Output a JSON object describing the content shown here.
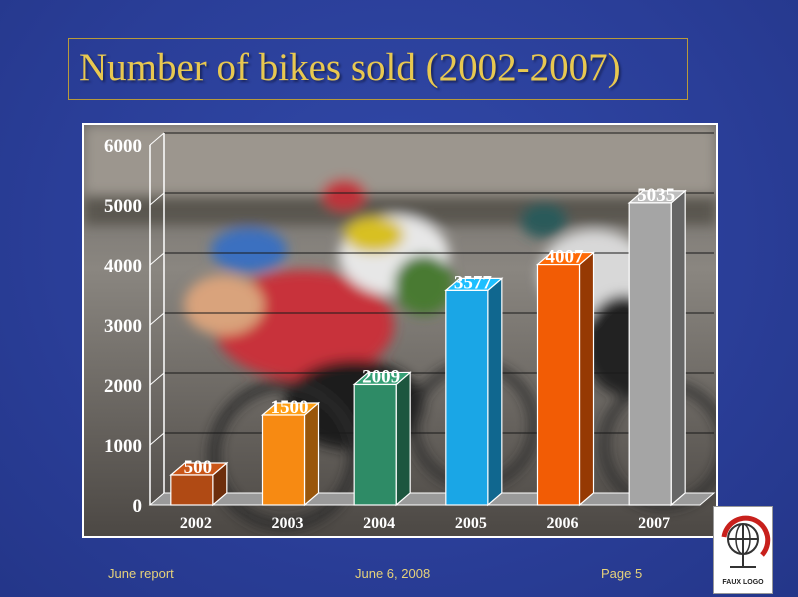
{
  "slide": {
    "title": "Number of bikes sold (2002-2007)",
    "footer_left": "June report",
    "footer_center": "June 6, 2008",
    "footer_right": "Page 5",
    "logo_text": "FAUX LOGO"
  },
  "colors": {
    "background": "#2a3f9a",
    "title": "#e8c850",
    "footer": "#e6d27a"
  },
  "chart_data": {
    "type": "bar",
    "title": "Number of bikes sold (2002-2007)",
    "categories": [
      "2002",
      "2003",
      "2004",
      "2005",
      "2006",
      "2007"
    ],
    "values": [
      500,
      1500,
      2009,
      3577,
      4007,
      5035
    ],
    "value_labels": [
      "500",
      "1500",
      "2009",
      "3577",
      "4007",
      "5035"
    ],
    "bar_colors": [
      "#b04a14",
      "#f78a12",
      "#2e8b66",
      "#1aa6e6",
      "#f25c05",
      "#a5a5a5"
    ],
    "ylim": [
      0,
      6000
    ],
    "yticks": [
      0,
      1000,
      2000,
      3000,
      4000,
      5000,
      6000
    ],
    "ytick_labels": [
      "0",
      "1000",
      "2000",
      "3000",
      "4000",
      "5000",
      "6000"
    ],
    "xlabel": "",
    "ylabel": "",
    "grid": true,
    "legend": "none",
    "style": "3d-bars-over-photo"
  }
}
